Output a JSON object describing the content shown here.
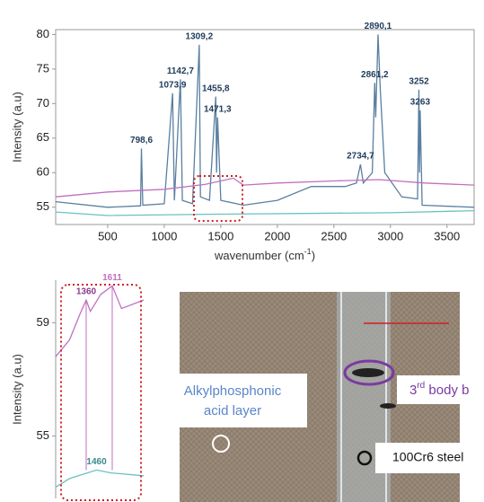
{
  "chart_data": [
    {
      "type": "line",
      "ylabel": "Intensity (a.u)",
      "xlabel": [
        "wavenumber (cm",
        "-1",
        ")"
      ],
      "xlim": [
        40,
        3740
      ],
      "ylim": [
        52.5,
        80.7
      ],
      "xticks": [
        500,
        1000,
        1500,
        2000,
        2500,
        3000,
        3500
      ],
      "yticks": [
        55,
        60,
        65,
        70,
        75,
        80
      ],
      "series": [
        {
          "color": "#5a7fa0",
          "x": [
            40,
            500,
            790,
            798.6,
            810,
            1000,
            1073.9,
            1090,
            1142.7,
            1160,
            1250,
            1309.2,
            1320,
            1400,
            1455.8,
            1463,
            1471.3,
            1500,
            1700,
            2000,
            2300,
            2600,
            2700,
            2734.7,
            2760,
            2840,
            2861.2,
            2870,
            2890.1,
            2910,
            2950,
            3100,
            3240,
            3252,
            3257,
            3263,
            3280,
            3740
          ],
          "values": [
            55.8,
            55,
            55.2,
            63.5,
            55.3,
            55.5,
            71.5,
            56,
            73.5,
            56,
            55.5,
            78.5,
            56.5,
            56,
            71,
            60,
            68,
            56,
            55.3,
            56,
            58,
            58,
            58.5,
            61.2,
            58.5,
            60,
            73,
            68,
            80,
            72,
            60,
            56.5,
            56.2,
            72,
            60,
            69,
            55.3,
            55
          ]
        },
        {
          "color": "#c070c0",
          "x": [
            40,
            500,
            1000,
            1360,
            1611,
            1700,
            2000,
            2500,
            2900,
            3300,
            3740
          ],
          "values": [
            56.5,
            57.2,
            57.6,
            58.3,
            59.2,
            58.2,
            58.5,
            58.8,
            59,
            58.5,
            58.2
          ]
        },
        {
          "color": "#6cc0c0",
          "x": [
            40,
            500,
            1460,
            3000,
            3740
          ],
          "values": [
            54.3,
            53.8,
            54,
            54.2,
            54.5
          ]
        }
      ],
      "annotations": [
        {
          "label": "798,6",
          "x": 798.6,
          "y": 63.5
        },
        {
          "label": "1073,9",
          "x": 1073.9,
          "y": 71.5
        },
        {
          "label": "1142,7",
          "x": 1142.7,
          "y": 73.5
        },
        {
          "label": "1309,2",
          "x": 1309.2,
          "y": 78.5
        },
        {
          "label": "1455,8",
          "x": 1455.8,
          "y": 71
        },
        {
          "label": "1471,3",
          "x": 1471.3,
          "y": 68
        },
        {
          "label": "2734,7",
          "x": 2734.7,
          "y": 61.2
        },
        {
          "label": "2861,2",
          "x": 2861.2,
          "y": 73
        },
        {
          "label": "2890,1",
          "x": 2890.1,
          "y": 80
        },
        {
          "label": "3252",
          "x": 3252,
          "y": 72
        },
        {
          "label": "3263",
          "x": 3263,
          "y": 69
        }
      ]
    },
    {
      "type": "line",
      "ylabel": "Intensity (a.u)",
      "xlim": [
        1066,
        1914
      ],
      "ylim": [
        52.8,
        60.5
      ],
      "yticks": [
        55,
        59
      ],
      "series": [
        {
          "color": "#c070c0",
          "x": [
            1066,
            1200,
            1300,
            1360,
            1400,
            1500,
            1611,
            1700,
            1914
          ],
          "values": [
            57.8,
            58.4,
            59.3,
            59.8,
            59.4,
            60,
            60.3,
            59.5,
            59.8
          ]
        },
        {
          "color": "#6cc0c0",
          "x": [
            1066,
            1200,
            1460,
            1600,
            1914
          ],
          "values": [
            53.2,
            53.5,
            53.8,
            53.7,
            53.6
          ]
        }
      ],
      "annotations": [
        {
          "label": "1360",
          "x": 1360,
          "y": 59.8,
          "color": "#8a3a8a"
        },
        {
          "label": "1611",
          "x": 1611,
          "y": 60.3,
          "color": "#c070c0"
        },
        {
          "label": "1460",
          "x": 1460,
          "y": 53.8,
          "color": "#3a8a8a"
        }
      ]
    }
  ],
  "micrograph": {
    "label_layer": [
      "Alkylphosphonic",
      "acid layer"
    ],
    "label_body": [
      "3",
      "rd",
      " body b"
    ],
    "label_steel": "100Cr6  steel"
  }
}
